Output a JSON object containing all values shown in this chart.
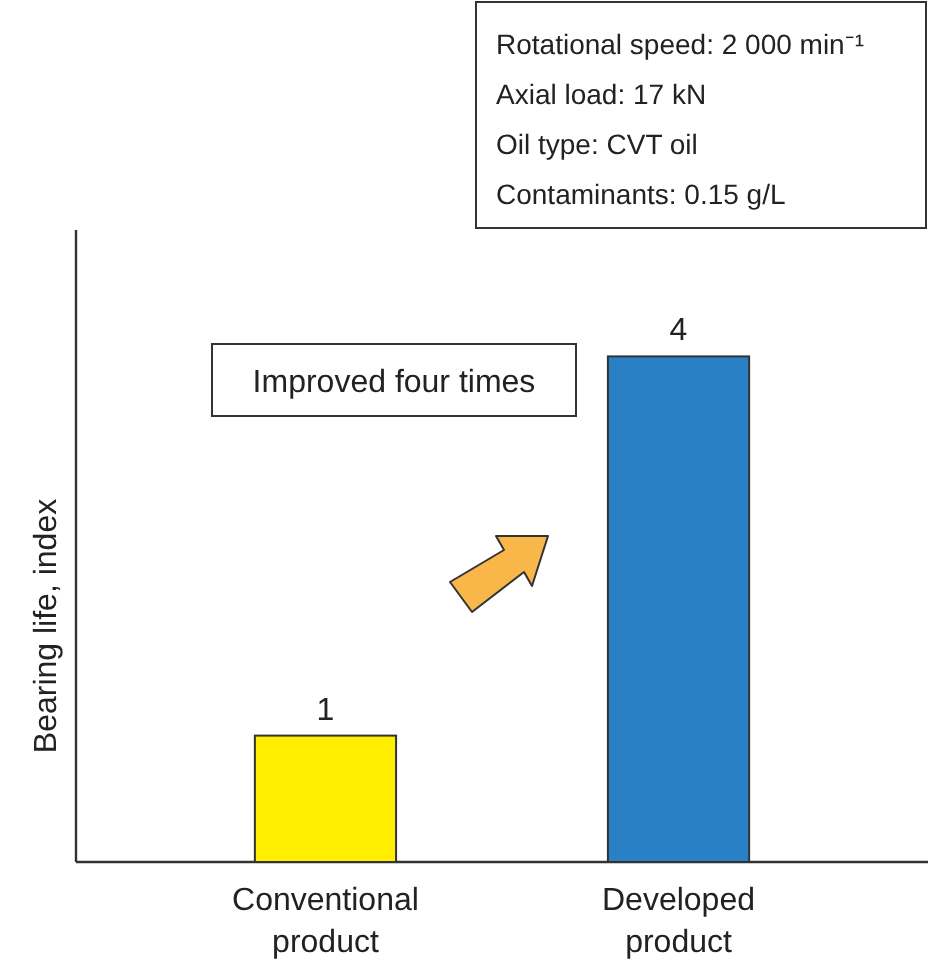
{
  "chart_data": {
    "type": "bar",
    "ylabel": "Bearing life, index",
    "categories": [
      "Conventional product",
      "Developed product"
    ],
    "values": [
      1,
      4
    ],
    "colors": [
      "#ffee00",
      "#2a80c5"
    ],
    "ylim": [
      0,
      5
    ],
    "data_labels": true,
    "annotations": [
      "Rotational speed: 2 000 min⁻¹",
      "Axial load: 17 kN",
      "Oil type: CVT oil",
      "Contaminants: 0.15 g/L",
      "Improved four times"
    ]
  }
}
